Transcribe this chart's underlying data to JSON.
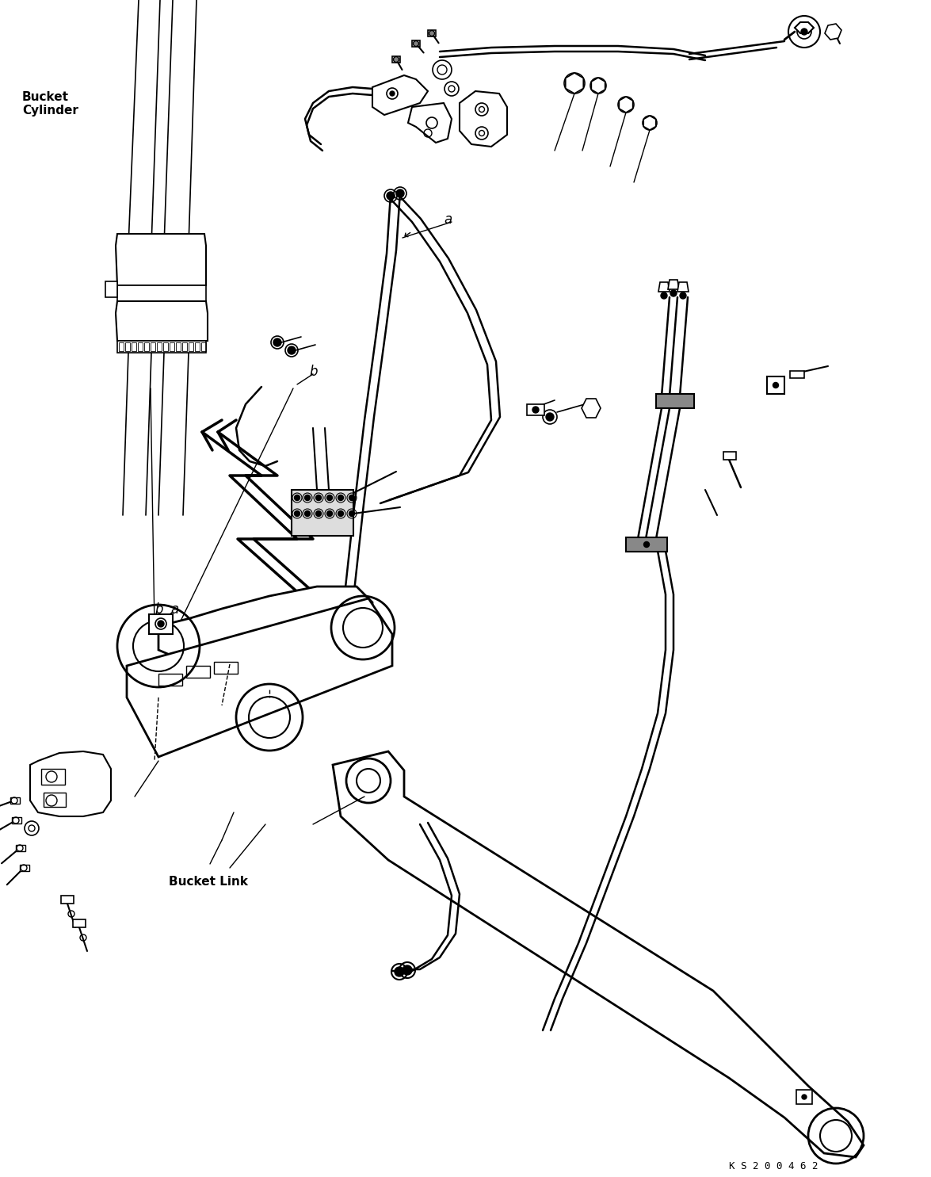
{
  "bg_color": "#ffffff",
  "line_color": "#000000",
  "fig_width": 11.75,
  "fig_height": 14.85,
  "dpi": 100,
  "label_bucket_cylinder": "Bucket\nCylinder",
  "label_bucket_link": "Bucket Link",
  "label_code": "K S 2 0 0 4 6 2",
  "label_a_upper": "a",
  "label_b_upper": "b",
  "label_a_lower": "a",
  "label_b_lower": "b",
  "font_size_labels": 11,
  "font_size_code": 9,
  "font_size_ab": 12
}
